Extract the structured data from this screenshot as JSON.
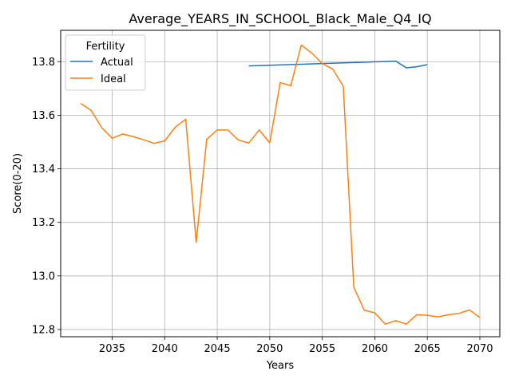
{
  "chart_data": {
    "type": "line",
    "title": "Average_YEARS_IN_SCHOOL_Black_Male_Q4_IQ",
    "xlabel": "Years",
    "ylabel": "Score(0-20)",
    "xlim": [
      2030.1,
      2071.9
    ],
    "ylim": [
      12.773,
      13.917
    ],
    "xticks": [
      2035,
      2040,
      2045,
      2050,
      2055,
      2060,
      2065,
      2070
    ],
    "yticks": [
      12.8,
      13.0,
      13.2,
      13.4,
      13.6,
      13.8
    ],
    "ytick_labels": [
      "12.8",
      "13.0",
      "13.2",
      "13.4",
      "13.6",
      "13.8"
    ],
    "grid": true,
    "legend": {
      "title": "Fertility",
      "position": "upper-left"
    },
    "series": [
      {
        "name": "Actual",
        "color": "#1f77b4",
        "x": [
          2048,
          2062,
          2063,
          2064,
          2065
        ],
        "y": [
          13.784,
          13.802,
          13.777,
          13.781,
          13.789
        ]
      },
      {
        "name": "Ideal",
        "color": "#ff7f0e",
        "x": [
          2032,
          2033,
          2034,
          2035,
          2036,
          2037,
          2038,
          2039,
          2040,
          2041,
          2042,
          2043,
          2044,
          2045,
          2046,
          2047,
          2048,
          2049,
          2050,
          2051,
          2052,
          2053,
          2054,
          2055,
          2056,
          2057,
          2058,
          2059,
          2060,
          2061,
          2062,
          2063,
          2064,
          2065,
          2066,
          2067,
          2068,
          2069,
          2070
        ],
        "y": [
          13.644,
          13.618,
          13.554,
          13.514,
          13.53,
          13.52,
          13.508,
          13.495,
          13.504,
          13.555,
          13.585,
          13.125,
          13.51,
          13.545,
          13.545,
          13.508,
          13.496,
          13.545,
          13.497,
          13.722,
          13.71,
          13.862,
          13.832,
          13.793,
          13.772,
          13.708,
          12.958,
          12.872,
          12.862,
          12.82,
          12.833,
          12.82,
          12.855,
          12.853,
          12.847,
          12.855,
          12.86,
          12.873,
          12.845
        ]
      }
    ]
  }
}
